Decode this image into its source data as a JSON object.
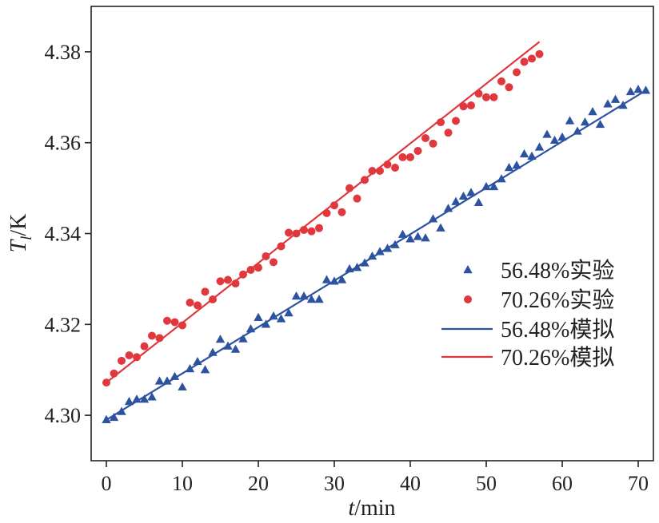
{
  "chart_data": {
    "type": "scatter",
    "xlabel_var": "t",
    "xlabel_unit": "/min",
    "ylabel_var": "T",
    "ylabel_sub": "l",
    "ylabel_unit": "/K",
    "xlim": [
      -2,
      72
    ],
    "ylim": [
      4.29,
      4.39
    ],
    "xticks": [
      0,
      10,
      20,
      30,
      40,
      50,
      60,
      70
    ],
    "yticks": [
      4.3,
      4.32,
      4.34,
      4.36,
      4.38
    ],
    "ytick_labels": [
      "4.30",
      "4.32",
      "4.34",
      "4.36",
      "4.38"
    ],
    "legend_position": "lower-right",
    "colors": {
      "blue": "#2c52a0",
      "red": "#e0383c"
    },
    "series": [
      {
        "name": "56.48%实验",
        "kind": "scatter",
        "marker": "triangle",
        "color": "#2c52a0",
        "x": [
          0,
          1,
          2,
          3,
          4,
          5,
          6,
          7,
          8,
          9,
          10,
          11,
          12,
          13,
          14,
          15,
          16,
          17,
          18,
          19,
          20,
          21,
          22,
          23,
          24,
          25,
          26,
          27,
          28,
          29,
          30,
          31,
          32,
          33,
          34,
          35,
          36,
          37,
          38,
          39,
          40,
          41,
          42,
          43,
          44,
          45,
          46,
          47,
          48,
          49,
          50,
          51,
          52,
          53,
          54,
          55,
          56,
          57,
          58,
          59,
          60,
          61,
          62,
          63,
          64,
          65,
          66,
          67,
          68,
          69,
          70,
          71
        ],
        "y": [
          4.299,
          4.2995,
          4.3008,
          4.303,
          4.3035,
          4.3035,
          4.304,
          4.3075,
          4.3075,
          4.3085,
          4.3062,
          4.3102,
          4.3118,
          4.31,
          4.3138,
          4.3167,
          4.3152,
          4.3145,
          4.3168,
          4.319,
          4.3215,
          4.32,
          4.3218,
          4.3212,
          4.3225,
          4.3262,
          4.3262,
          4.3255,
          4.3255,
          4.3298,
          4.3295,
          4.3298,
          4.3322,
          4.3325,
          4.3335,
          4.335,
          4.336,
          4.3367,
          4.3375,
          4.3398,
          4.3388,
          4.3393,
          4.339,
          4.3432,
          4.3412,
          4.3455,
          4.347,
          4.3482,
          4.349,
          4.3468,
          4.3503,
          4.3503,
          4.352,
          4.3545,
          4.355,
          4.3575,
          4.357,
          4.359,
          4.3618,
          4.3605,
          4.3612,
          4.3648,
          4.3625,
          4.3645,
          4.3668,
          4.364,
          4.3685,
          4.3695,
          4.3682,
          4.3712,
          4.3717,
          4.3715
        ]
      },
      {
        "name": "70.26%实验",
        "kind": "scatter",
        "marker": "circle",
        "color": "#e0383c",
        "x": [
          0,
          1,
          2,
          3,
          4,
          5,
          6,
          7,
          8,
          9,
          10,
          11,
          12,
          13,
          14,
          15,
          16,
          17,
          18,
          19,
          20,
          21,
          22,
          23,
          24,
          25,
          26,
          27,
          28,
          29,
          30,
          31,
          32,
          33,
          34,
          35,
          36,
          37,
          38,
          39,
          40,
          41,
          42,
          43,
          44,
          45,
          46,
          47,
          48,
          49,
          50,
          51,
          52,
          53,
          54,
          55,
          56,
          57
        ],
        "y": [
          4.3072,
          4.3092,
          4.312,
          4.3132,
          4.3128,
          4.3152,
          4.3175,
          4.317,
          4.3208,
          4.3205,
          4.3198,
          4.3248,
          4.3242,
          4.3272,
          4.3255,
          4.3295,
          4.3298,
          4.329,
          4.331,
          4.332,
          4.3325,
          4.335,
          4.3337,
          4.3372,
          4.3402,
          4.34,
          4.3408,
          4.3405,
          4.3412,
          4.3445,
          4.3462,
          4.3447,
          4.35,
          4.3477,
          4.3518,
          4.3538,
          4.3538,
          4.3552,
          4.3545,
          4.3568,
          4.3568,
          4.3582,
          4.361,
          4.3598,
          4.3645,
          4.3622,
          4.3648,
          4.368,
          4.3682,
          4.3708,
          4.37,
          4.37,
          4.3735,
          4.3722,
          4.3755,
          4.3778,
          4.3785,
          4.3795
        ]
      },
      {
        "name": "56.48%模拟",
        "kind": "line",
        "color": "#2c52a0",
        "x": [
          0,
          71
        ],
        "y": [
          4.299,
          4.3715
        ]
      },
      {
        "name": "70.26%模拟",
        "kind": "line",
        "color": "#e0383c",
        "x": [
          0,
          57
        ],
        "y": [
          4.3072,
          4.3822
        ]
      }
    ]
  }
}
